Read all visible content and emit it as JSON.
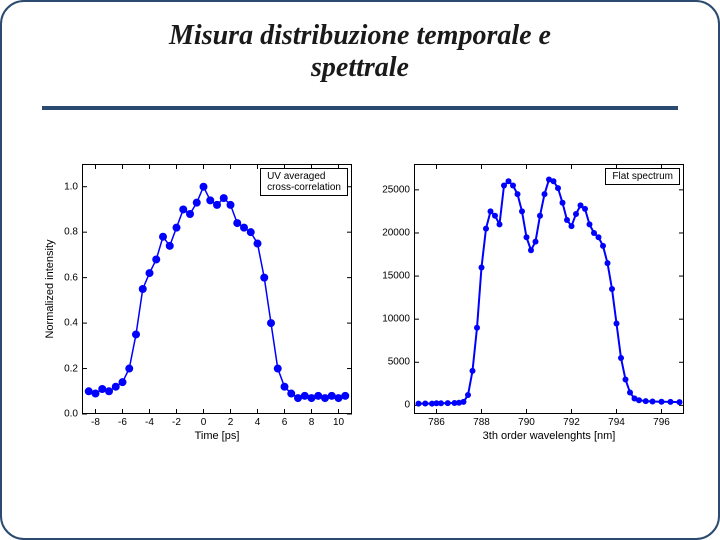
{
  "title_line1": "Misura distribuzione temporale e",
  "title_line2": "spettrale",
  "colors": {
    "border": "#2b4a6f",
    "series": "#0000ff",
    "axis": "#000000",
    "text": "#000000"
  },
  "left_chart": {
    "type": "scatter-line",
    "legend": "UV averaged\ncross-correlation",
    "xlabel": "Time [ps]",
    "ylabel": "Normalized intensity",
    "xlim": [
      -9,
      11
    ],
    "ylim": [
      0.0,
      1.1
    ],
    "xticks": [
      -8,
      -6,
      -4,
      -2,
      0,
      2,
      4,
      6,
      8,
      10
    ],
    "yticks": [
      0.0,
      0.2,
      0.4,
      0.6,
      0.8,
      1.0
    ],
    "marker_size": 4,
    "line_width": 1.5,
    "series_color": "#0000ff",
    "data": [
      [
        -8.5,
        0.1
      ],
      [
        -8.0,
        0.09
      ],
      [
        -7.5,
        0.11
      ],
      [
        -7.0,
        0.1
      ],
      [
        -6.5,
        0.12
      ],
      [
        -6.0,
        0.14
      ],
      [
        -5.5,
        0.2
      ],
      [
        -5.0,
        0.35
      ],
      [
        -4.5,
        0.55
      ],
      [
        -4.0,
        0.62
      ],
      [
        -3.5,
        0.68
      ],
      [
        -3.0,
        0.78
      ],
      [
        -2.5,
        0.74
      ],
      [
        -2.0,
        0.82
      ],
      [
        -1.5,
        0.9
      ],
      [
        -1.0,
        0.88
      ],
      [
        -0.5,
        0.93
      ],
      [
        0.0,
        1.0
      ],
      [
        0.5,
        0.94
      ],
      [
        1.0,
        0.92
      ],
      [
        1.5,
        0.95
      ],
      [
        2.0,
        0.92
      ],
      [
        2.5,
        0.84
      ],
      [
        3.0,
        0.82
      ],
      [
        3.5,
        0.8
      ],
      [
        4.0,
        0.75
      ],
      [
        4.5,
        0.6
      ],
      [
        5.0,
        0.4
      ],
      [
        5.5,
        0.2
      ],
      [
        6.0,
        0.12
      ],
      [
        6.5,
        0.09
      ],
      [
        7.0,
        0.07
      ],
      [
        7.5,
        0.08
      ],
      [
        8.0,
        0.07
      ],
      [
        8.5,
        0.08
      ],
      [
        9.0,
        0.07
      ],
      [
        9.5,
        0.08
      ],
      [
        10.0,
        0.07
      ],
      [
        10.5,
        0.08
      ]
    ]
  },
  "right_chart": {
    "type": "scatter-line",
    "legend": "Flat  spectrum",
    "xlabel": "3th order wavelenghts [nm]",
    "ylabel": "",
    "xlim": [
      785,
      797
    ],
    "ylim": [
      -1000,
      28000
    ],
    "xticks": [
      786,
      788,
      790,
      792,
      794,
      796
    ],
    "yticks": [
      0,
      5000,
      10000,
      15000,
      20000,
      25000
    ],
    "marker_size": 3,
    "line_width": 2,
    "series_color": "#0000ff",
    "data": [
      [
        785.2,
        200
      ],
      [
        785.5,
        220
      ],
      [
        785.8,
        210
      ],
      [
        786.0,
        250
      ],
      [
        786.2,
        240
      ],
      [
        786.5,
        260
      ],
      [
        786.8,
        280
      ],
      [
        787.0,
        300
      ],
      [
        787.2,
        400
      ],
      [
        787.4,
        1200
      ],
      [
        787.6,
        4000
      ],
      [
        787.8,
        9000
      ],
      [
        788.0,
        16000
      ],
      [
        788.2,
        20500
      ],
      [
        788.4,
        22500
      ],
      [
        788.6,
        22000
      ],
      [
        788.8,
        21000
      ],
      [
        789.0,
        25500
      ],
      [
        789.2,
        26000
      ],
      [
        789.4,
        25500
      ],
      [
        789.6,
        24500
      ],
      [
        789.8,
        22500
      ],
      [
        790.0,
        19500
      ],
      [
        790.2,
        18000
      ],
      [
        790.4,
        19000
      ],
      [
        790.6,
        22000
      ],
      [
        790.8,
        24500
      ],
      [
        791.0,
        26200
      ],
      [
        791.2,
        26000
      ],
      [
        791.4,
        25200
      ],
      [
        791.6,
        23500
      ],
      [
        791.8,
        21500
      ],
      [
        792.0,
        20800
      ],
      [
        792.2,
        22200
      ],
      [
        792.4,
        23200
      ],
      [
        792.6,
        22800
      ],
      [
        792.8,
        21000
      ],
      [
        793.0,
        20000
      ],
      [
        793.2,
        19500
      ],
      [
        793.4,
        18500
      ],
      [
        793.6,
        16500
      ],
      [
        793.8,
        13500
      ],
      [
        794.0,
        9500
      ],
      [
        794.2,
        5500
      ],
      [
        794.4,
        3000
      ],
      [
        794.6,
        1500
      ],
      [
        794.8,
        800
      ],
      [
        795.0,
        600
      ],
      [
        795.3,
        500
      ],
      [
        795.6,
        450
      ],
      [
        796.0,
        420
      ],
      [
        796.4,
        400
      ],
      [
        796.8,
        380
      ]
    ]
  }
}
